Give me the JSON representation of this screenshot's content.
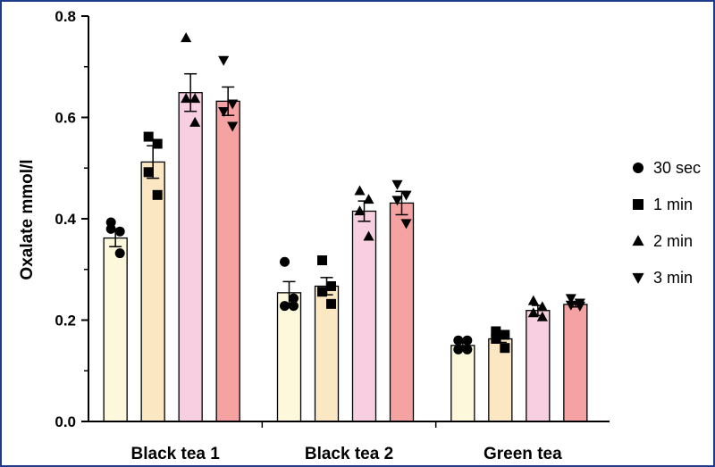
{
  "chart_data": {
    "type": "bar",
    "ylabel": "Oxalate mmol/l",
    "xlabel": "",
    "ylim": [
      0,
      0.8
    ],
    "yticks": [
      "0.0",
      "0.2",
      "0.4",
      "0.6",
      "0.8"
    ],
    "legend_position": "right",
    "grid": false,
    "categories": [
      "Black tea 1",
      "Black tea 2",
      "Green tea"
    ],
    "series": [
      {
        "name": "30 sec",
        "marker": "circle",
        "color": "#fdf8dc",
        "values": [
          0.362,
          0.254,
          0.15
        ],
        "errors": [
          0.017,
          0.022,
          0.006
        ],
        "points": [
          [
            0.393,
            0.375,
            0.38,
            0.332
          ],
          [
            0.315,
            0.243,
            0.228,
            0.228
          ],
          [
            0.16,
            0.16,
            0.142,
            0.142
          ]
        ]
      },
      {
        "name": "1 min",
        "marker": "square",
        "color": "#fce7c3",
        "values": [
          0.512,
          0.267,
          0.163
        ],
        "errors": [
          0.032,
          0.017,
          0.007
        ],
        "points": [
          [
            0.562,
            0.548,
            0.492,
            0.447
          ],
          [
            0.318,
            0.267,
            0.256,
            0.232
          ],
          [
            0.178,
            0.171,
            0.163,
            0.145
          ]
        ]
      },
      {
        "name": "2 min",
        "marker": "triangle-up",
        "color": "#f7cfe0",
        "values": [
          0.649,
          0.415,
          0.219
        ],
        "errors": [
          0.037,
          0.02,
          0.01
        ],
        "points": [
          [
            0.757,
            0.637,
            0.637,
            0.59
          ],
          [
            0.455,
            0.438,
            0.415,
            0.365
          ],
          [
            0.238,
            0.226,
            0.214,
            0.206
          ]
        ]
      },
      {
        "name": "3 min",
        "marker": "triangle-down",
        "color": "#f5a3a2",
        "values": [
          0.632,
          0.431,
          0.231
        ],
        "errors": [
          0.028,
          0.023,
          0.005
        ],
        "points": [
          [
            0.713,
            0.627,
            0.612,
            0.583
          ],
          [
            0.468,
            0.447,
            0.437,
            0.391
          ],
          [
            0.243,
            0.234,
            0.23,
            0.228
          ]
        ]
      }
    ]
  }
}
